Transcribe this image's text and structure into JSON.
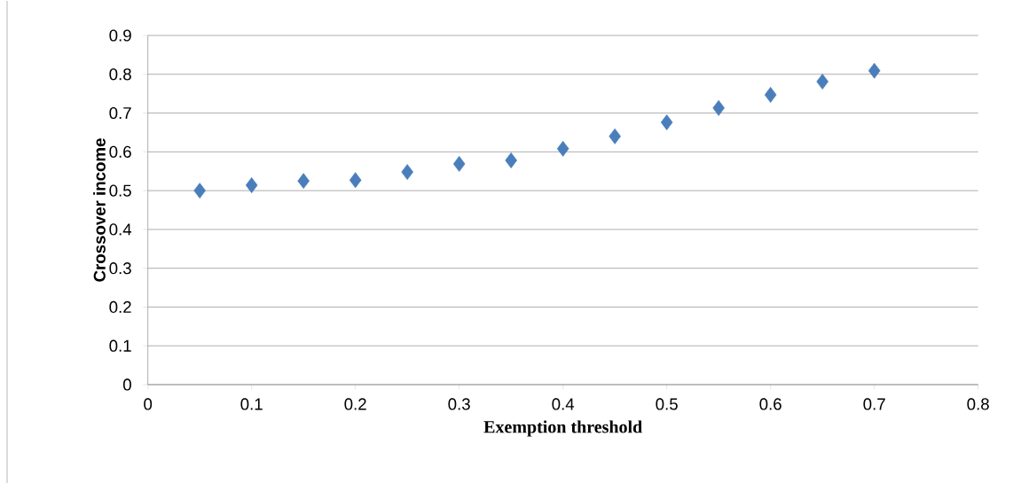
{
  "chart_data": {
    "type": "scatter",
    "xlabel": "Exemption threshold",
    "ylabel": "Crossover income",
    "x": [
      0.05,
      0.1,
      0.15,
      0.2,
      0.25,
      0.3,
      0.35,
      0.4,
      0.45,
      0.5,
      0.55,
      0.6,
      0.65,
      0.7
    ],
    "series": [
      {
        "color": "#4a7ebb",
        "values": [
          0.5,
          0.514,
          0.525,
          0.527,
          0.548,
          0.569,
          0.578,
          0.608,
          0.64,
          0.676,
          0.713,
          0.747,
          0.781,
          0.809
        ]
      }
    ],
    "xlim": [
      0,
      0.8
    ],
    "xticks": [
      0,
      0.1,
      0.2,
      0.3,
      0.4,
      0.5,
      0.6,
      0.7,
      0.8
    ],
    "ylim": [
      0,
      0.9
    ],
    "yticks": [
      0,
      0.1,
      0.2,
      0.3,
      0.4,
      0.5,
      0.6,
      0.7,
      0.8,
      0.9
    ],
    "grid": "y",
    "marker": "diamond"
  }
}
